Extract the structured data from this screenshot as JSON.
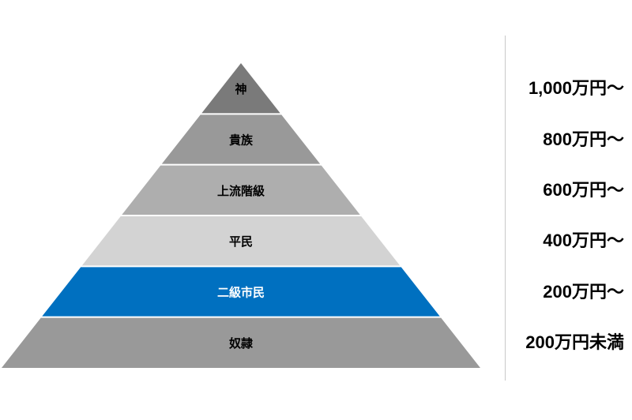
{
  "chart_data": {
    "type": "pyramid",
    "title": "",
    "background_color": "#ffffff",
    "divider_color": "#c9c9c9",
    "highlight_color": "#0070c0",
    "levels": [
      {
        "label": "神",
        "range": "1,000万円〜",
        "color": "#7a7a7a",
        "text_color": "#000000"
      },
      {
        "label": "貴族",
        "range": "800万円〜",
        "color": "#999999",
        "text_color": "#000000"
      },
      {
        "label": "上流階級",
        "range": "600万円〜",
        "color": "#aeaeae",
        "text_color": "#000000"
      },
      {
        "label": "平民",
        "range": "400万円〜",
        "color": "#d3d3d3",
        "text_color": "#000000"
      },
      {
        "label": "二級市民",
        "range": "200万円〜",
        "color": "#0070c0",
        "text_color": "#ffffff"
      },
      {
        "label": "奴隷",
        "range": "200万円未満",
        "color": "#999999",
        "text_color": "#000000"
      }
    ]
  }
}
